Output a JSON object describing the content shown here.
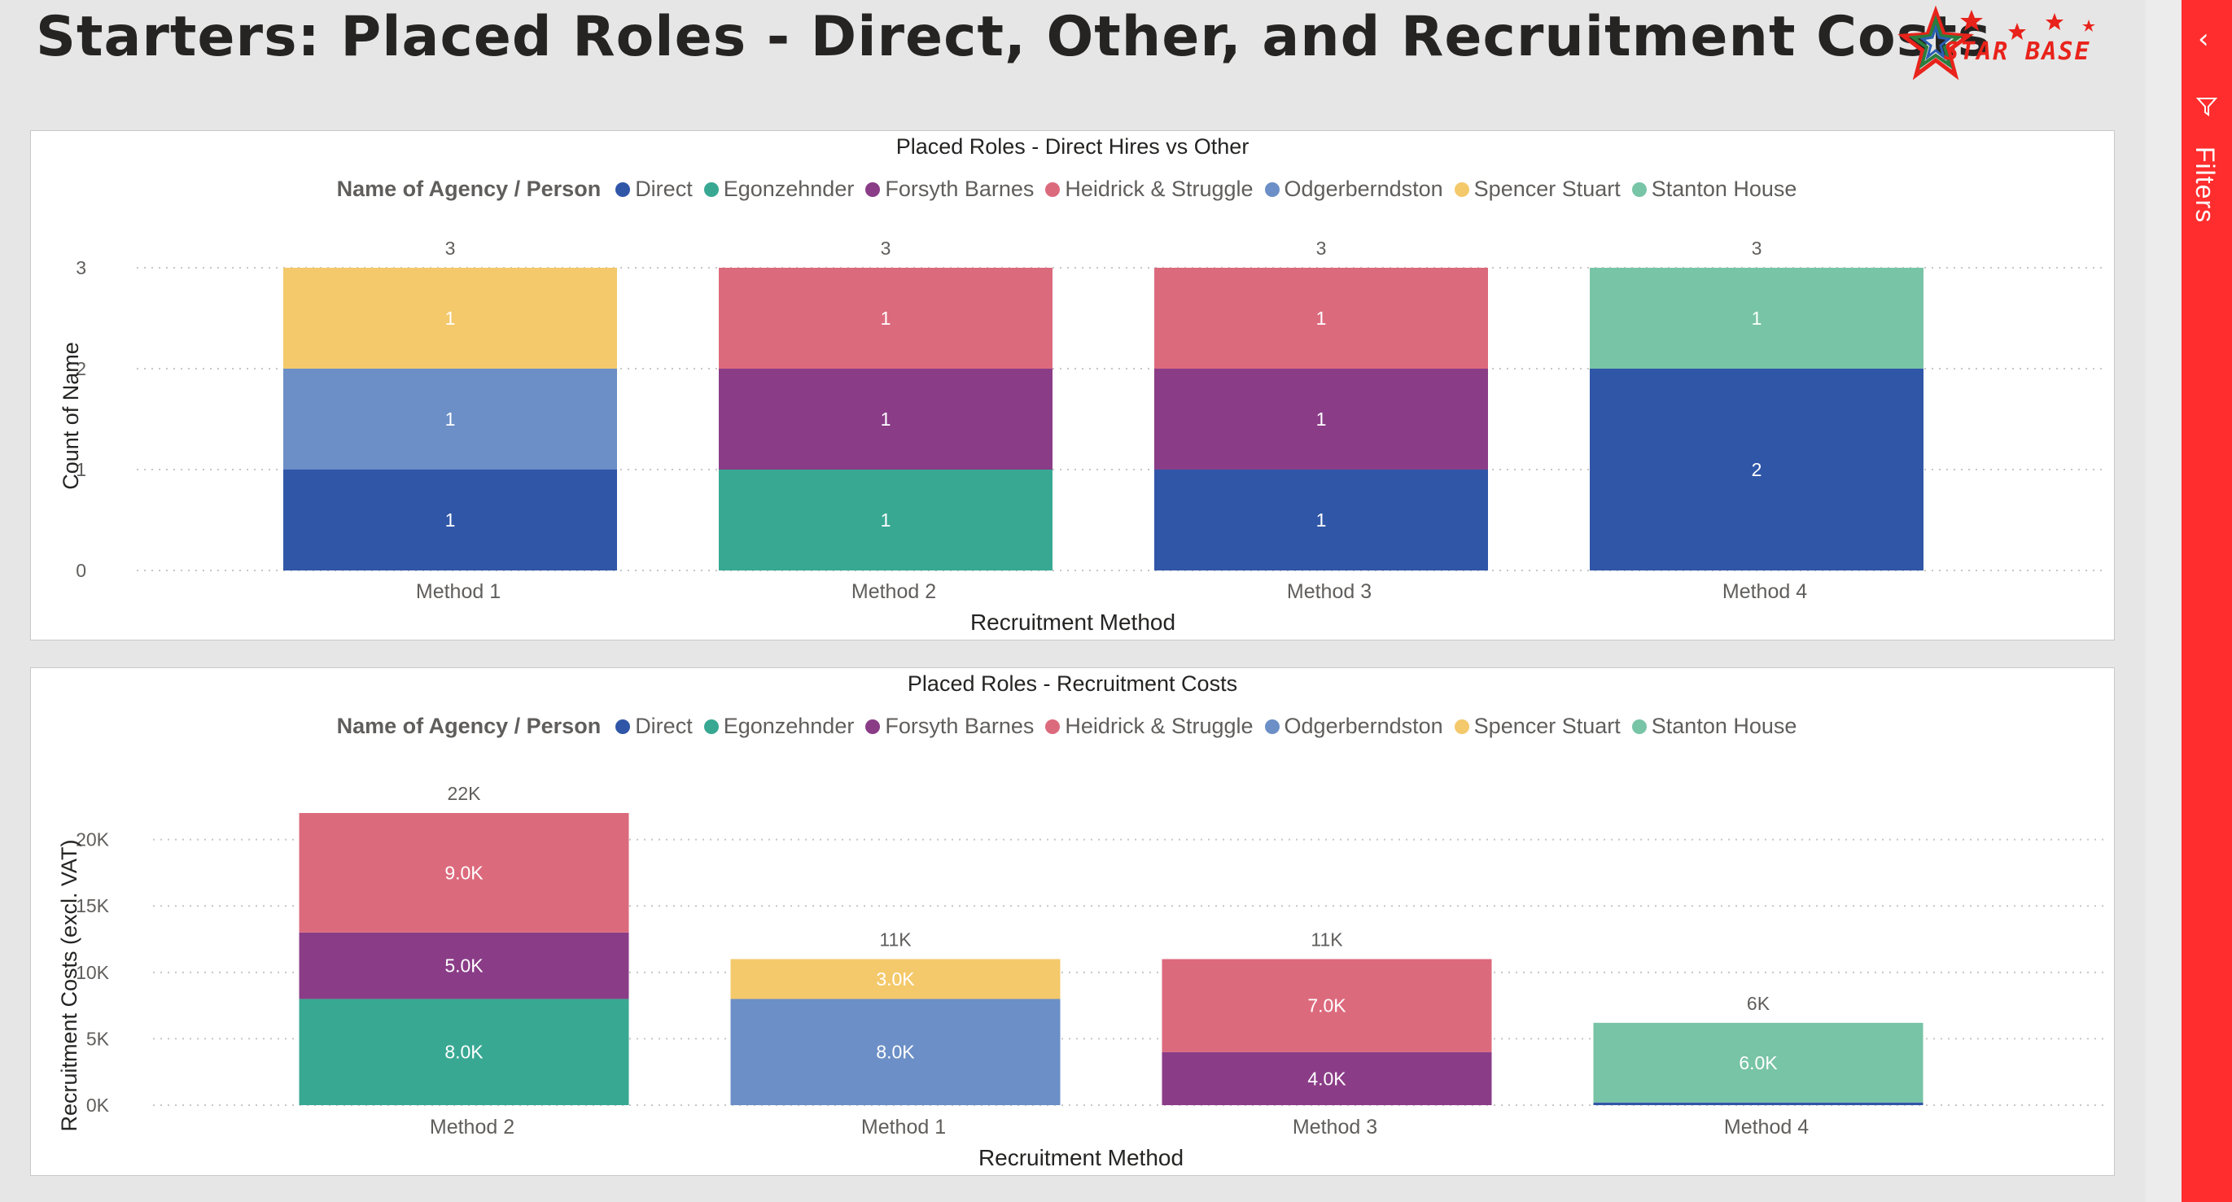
{
  "page": {
    "title": "Starters: Placed Roles - Direct, Other, and Recruitment Costs"
  },
  "logo": {
    "text": "STAR BASE"
  },
  "filters": {
    "label": "Filters",
    "collapse_icon": "chevron-left-icon",
    "filter_icon": "funnel-icon"
  },
  "legend": {
    "title": "Name of Agency / Person",
    "items": [
      {
        "label": "Direct",
        "color": "#3056a8"
      },
      {
        "label": "Egonzehnder",
        "color": "#38a893"
      },
      {
        "label": "Forsyth Barnes",
        "color": "#8a3c87"
      },
      {
        "label": "Heidrick & Struggle",
        "color": "#dc6a7d"
      },
      {
        "label": "Odgerberndston",
        "color": "#6b8fc6"
      },
      {
        "label": "Spencer Stuart",
        "color": "#f4c96b"
      },
      {
        "label": "Stanton House",
        "color": "#78c4a6"
      }
    ]
  },
  "chart_data": [
    {
      "type": "bar",
      "stacked": true,
      "title": "Placed Roles - Direct Hires vs Other",
      "xlabel": "Recruitment Method",
      "ylabel": "Count of Name",
      "ylim": [
        0,
        3
      ],
      "yticks": [
        "0",
        "1",
        "2",
        "3"
      ],
      "grid": true,
      "legend_position": "top",
      "categories": [
        "Method 1",
        "Method 2",
        "Method 3",
        "Method 4"
      ],
      "totals": [
        "3",
        "3",
        "3",
        "3"
      ],
      "series": [
        {
          "name": "Direct",
          "values": [
            1,
            0,
            1,
            2
          ],
          "labels": [
            "1",
            "",
            "1",
            "2"
          ]
        },
        {
          "name": "Egonzehnder",
          "values": [
            0,
            1,
            0,
            0
          ],
          "labels": [
            "",
            "1",
            "",
            ""
          ]
        },
        {
          "name": "Forsyth Barnes",
          "values": [
            0,
            1,
            1,
            0
          ],
          "labels": [
            "",
            "1",
            "1",
            ""
          ]
        },
        {
          "name": "Heidrick & Struggle",
          "values": [
            0,
            1,
            1,
            0
          ],
          "labels": [
            "",
            "1",
            "1",
            ""
          ]
        },
        {
          "name": "Odgerberndston",
          "values": [
            1,
            0,
            0,
            0
          ],
          "labels": [
            "1",
            "",
            "",
            ""
          ]
        },
        {
          "name": "Spencer Stuart",
          "values": [
            1,
            0,
            0,
            0
          ],
          "labels": [
            "1",
            "",
            "",
            ""
          ]
        },
        {
          "name": "Stanton House",
          "values": [
            0,
            0,
            0,
            1
          ],
          "labels": [
            "",
            "",
            "",
            "1"
          ]
        }
      ]
    },
    {
      "type": "bar",
      "stacked": true,
      "title": "Placed Roles - Recruitment Costs",
      "xlabel": "Recruitment Method",
      "ylabel": "Recruitment Costs (excl. VAT)",
      "ylim": [
        0,
        22000
      ],
      "ytick_values": [
        0,
        5000,
        10000,
        15000,
        20000
      ],
      "yticks": [
        "0K",
        "5K",
        "10K",
        "15K",
        "20K"
      ],
      "grid": true,
      "legend_position": "top",
      "categories": [
        "Method 2",
        "Method 1",
        "Method 3",
        "Method 4"
      ],
      "totals": [
        "22K",
        "11K",
        "11K",
        "6K"
      ],
      "series": [
        {
          "name": "Direct",
          "values": [
            0,
            0,
            0,
            200
          ],
          "labels": [
            "",
            "",
            "",
            ""
          ]
        },
        {
          "name": "Egonzehnder",
          "values": [
            8000,
            0,
            0,
            0
          ],
          "labels": [
            "8.0K",
            "",
            "",
            ""
          ]
        },
        {
          "name": "Forsyth Barnes",
          "values": [
            5000,
            0,
            4000,
            0
          ],
          "labels": [
            "5.0K",
            "",
            "4.0K",
            ""
          ]
        },
        {
          "name": "Heidrick & Struggle",
          "values": [
            9000,
            0,
            7000,
            0
          ],
          "labels": [
            "9.0K",
            "",
            "7.0K",
            ""
          ]
        },
        {
          "name": "Odgerberndston",
          "values": [
            0,
            8000,
            0,
            0
          ],
          "labels": [
            "",
            "8.0K",
            "",
            ""
          ]
        },
        {
          "name": "Spencer Stuart",
          "values": [
            0,
            3000,
            0,
            0
          ],
          "labels": [
            "",
            "3.0K",
            "",
            ""
          ]
        },
        {
          "name": "Stanton House",
          "values": [
            0,
            0,
            0,
            6000
          ],
          "labels": [
            "",
            "",
            "",
            "6.0K"
          ]
        }
      ]
    }
  ]
}
